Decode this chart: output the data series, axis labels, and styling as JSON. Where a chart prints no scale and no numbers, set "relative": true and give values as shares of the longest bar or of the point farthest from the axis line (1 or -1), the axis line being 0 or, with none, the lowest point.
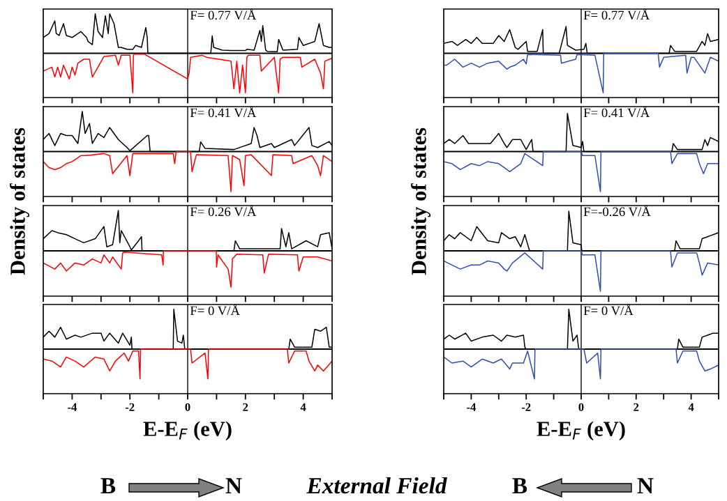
{
  "chart_data": [
    {
      "type": "line",
      "relative": true,
      "ylabel": "Density of states",
      "xlim": [
        -5,
        5
      ],
      "xticks": [
        {
          "value": -5,
          "label": null
        },
        -4,
        {
          "value": -3,
          "label": null
        },
        -2,
        {
          "value": -1,
          "label": null
        },
        0,
        {
          "value": 1,
          "label": null
        },
        2,
        {
          "value": 3,
          "label": null
        },
        4,
        {
          "value": 5,
          "label": null
        }
      ],
      "tick_labels": false,
      "annotations": [
        "F= 0.77 V/Å"
      ],
      "ref_lines": [
        {
          "axis": "x",
          "value": 0
        }
      ],
      "series": [
        {
          "color": "#000000",
          "x": [
            -5,
            -4.8,
            -4.6,
            -4.55,
            -4.45,
            -4.3,
            -4.2,
            -4.0,
            -3.7,
            -3.5,
            -3.45,
            -3.3,
            -3.2,
            -3.1,
            -2.95,
            -2.85,
            -2.75,
            -2.7,
            -2.55,
            -2.4,
            -2.3,
            -2.1,
            -1.9,
            -1.8,
            -1.6,
            -1.45,
            -1.4,
            -1.38,
            0.8,
            0.85,
            0.9,
            1.2,
            1.5,
            2.0,
            2.05,
            2.3,
            2.5,
            2.55,
            2.6,
            2.7,
            2.75,
            3.1,
            3.15,
            3.3,
            3.8,
            3.85,
            4.0,
            4.4,
            4.55,
            4.7,
            4.9,
            5.0
          ],
          "values": [
            0.4,
            0.5,
            0.82,
            0.5,
            0.45,
            0.75,
            0.45,
            0.4,
            0.55,
            0.4,
            0.3,
            0.22,
            1,
            0.55,
            0.4,
            0.95,
            0.5,
            1,
            0.75,
            0.15,
            0.15,
            0.1,
            0.1,
            0.2,
            0.15,
            0.65,
            0.4,
            0,
            0,
            0.44,
            0.15,
            0.08,
            0.07,
            0.07,
            0.1,
            0.08,
            0.58,
            0.3,
            0.7,
            0.08,
            0.05,
            0.04,
            0.35,
            0.08,
            0.1,
            0.4,
            0.2,
            0.3,
            0.75,
            0.2,
            0.15,
            0.15
          ]
        },
        {
          "color": "#ff0000",
          "x": [
            -5,
            -4.7,
            -4.6,
            -4.5,
            -4.4,
            -4.3,
            -4.1,
            -4.0,
            -3.9,
            -3.8,
            -3.6,
            -3.4,
            -3.3,
            -2.9,
            -2.5,
            -2.4,
            -2.3,
            -2.0,
            -1.9,
            -1.88,
            -1.85,
            -1.5,
            0,
            0.05,
            0.1,
            0.5,
            0.65,
            1.5,
            1.6,
            1.7,
            1.8,
            1.9,
            2.0,
            2.05,
            2.1,
            2.5,
            2.55,
            3.0,
            3.15,
            3.2,
            3.3,
            3.9,
            3.95,
            4.4,
            4.6,
            4.7,
            4.75,
            5.0
          ],
          "values": [
            -0.45,
            -0.35,
            -0.6,
            -0.35,
            -0.6,
            -0.3,
            -0.65,
            -0.35,
            -0.55,
            -0.25,
            -0.15,
            -0.15,
            -0.6,
            -0.08,
            -0.05,
            -0.3,
            -0.05,
            -0.05,
            -1,
            -0.05,
            -0.02,
            -0.02,
            -0.65,
            -0.5,
            -0.1,
            -0.05,
            -0.1,
            -0.2,
            -0.9,
            -0.2,
            -1,
            -0.3,
            -1,
            -0.1,
            -0.05,
            -0.05,
            -0.45,
            -0.1,
            -1,
            -0.15,
            -0.1,
            -0.1,
            -0.35,
            -0.15,
            -0.5,
            -0.9,
            -0.2,
            -0.12
          ]
        }
      ]
    },
    {
      "type": "line",
      "relative": true,
      "xlim": [
        -5,
        5
      ],
      "xticks": [
        {
          "value": -5,
          "label": null
        },
        -4,
        {
          "value": -3,
          "label": null
        },
        -2,
        {
          "value": -1,
          "label": null
        },
        0,
        {
          "value": 1,
          "label": null
        },
        2,
        {
          "value": 3,
          "label": null
        },
        4,
        {
          "value": 5,
          "label": null
        }
      ],
      "tick_labels": false,
      "annotations": [
        "F= 0.41 V/Å"
      ],
      "ref_lines": [
        {
          "axis": "x",
          "value": 0
        }
      ],
      "series": [
        {
          "color": "#000000",
          "x": [
            -5,
            -4.8,
            -4.6,
            -4.4,
            -4.2,
            -4.0,
            -3.8,
            -3.65,
            -3.55,
            -3.4,
            -3.3,
            -3.1,
            -2.9,
            -2.7,
            -2.4,
            -2.1,
            -2.0,
            -1.4,
            -1.35,
            -1.3,
            0.4,
            0.45,
            0.6,
            1.6,
            2.2,
            2.3,
            2.4,
            2.5,
            2.9,
            3.0,
            3.6,
            3.7,
            4.2,
            4.3,
            4.5,
            4.9,
            5.0
          ],
          "values": [
            0.3,
            0.45,
            0.15,
            0.45,
            0.4,
            0.4,
            0.2,
            1,
            0.45,
            0.7,
            0.2,
            0.45,
            0.35,
            0.6,
            0.3,
            0.1,
            0.02,
            0.4,
            0.4,
            0,
            0,
            0.24,
            0.08,
            0.05,
            0.2,
            0.6,
            0.4,
            0.1,
            0.2,
            0.1,
            0.3,
            0.15,
            0.6,
            0.15,
            0.1,
            0.25,
            0.15
          ]
        },
        {
          "color": "#ff0000",
          "x": [
            -5,
            -4.8,
            -4.6,
            -4.4,
            -4.2,
            -4.0,
            -3.7,
            -3.5,
            -2.9,
            -2.7,
            -2.6,
            -2.1,
            -2.0,
            -1.9,
            -0.5,
            -0.45,
            -0.4,
            0.1,
            0.15,
            0.3,
            1.4,
            1.5,
            1.55,
            1.8,
            1.95,
            2.0,
            2.2,
            2.9,
            2.95,
            3.6,
            3.65,
            4.3,
            4.5,
            4.6,
            4.7,
            5.0
          ],
          "values": [
            -0.25,
            -0.4,
            -0.45,
            -0.4,
            -0.3,
            -0.25,
            -0.1,
            -0.1,
            -0.05,
            -0.1,
            -0.55,
            -0.1,
            -0.6,
            -0.05,
            -0.05,
            -0.3,
            0,
            0,
            -0.5,
            -0.08,
            -0.1,
            -1,
            -0.1,
            -0.2,
            -0.85,
            -0.1,
            -0.08,
            -0.6,
            -0.08,
            -0.1,
            -0.3,
            -0.1,
            -0.35,
            -0.6,
            -0.1,
            -0.25
          ]
        }
      ]
    },
    {
      "type": "line",
      "relative": true,
      "xlim": [
        -5,
        5
      ],
      "xticks": [
        {
          "value": -5,
          "label": null
        },
        -4,
        {
          "value": -3,
          "label": null
        },
        -2,
        {
          "value": -1,
          "label": null
        },
        0,
        {
          "value": 1,
          "label": null
        },
        2,
        {
          "value": 3,
          "label": null
        },
        4,
        {
          "value": 5,
          "label": null
        }
      ],
      "tick_labels": false,
      "annotations": [
        "F= 0.26 V/Å"
      ],
      "ref_lines": [
        {
          "axis": "x",
          "value": 0
        }
      ],
      "series": [
        {
          "color": "#000000",
          "x": [
            -5,
            -4.7,
            -4.5,
            -4.2,
            -3.9,
            -3.6,
            -3.2,
            -2.9,
            -2.8,
            -2.6,
            -2.4,
            -2.35,
            -2.3,
            -2.0,
            -1.95,
            -1.7,
            -1.6,
            -1.58,
            1.6,
            1.65,
            1.8,
            3.2,
            3.25,
            3.4,
            3.5,
            3.6,
            4.1,
            4.5,
            4.6,
            4.9,
            5.0
          ],
          "values": [
            0.3,
            0.5,
            0.45,
            0.4,
            0.3,
            0.2,
            0.3,
            0.6,
            0.1,
            0.15,
            1,
            0.2,
            0.5,
            0.1,
            0.02,
            0.25,
            0.35,
            0,
            0,
            0.25,
            0.05,
            0.05,
            0.55,
            0.1,
            0.45,
            0.05,
            0.25,
            0.1,
            0.4,
            0.45,
            0.05
          ]
        },
        {
          "color": "#ff0000",
          "x": [
            -5,
            -4.6,
            -4.4,
            -4.2,
            -3.9,
            -3.6,
            -3.3,
            -3.0,
            -2.9,
            -2.7,
            -2.6,
            -2.3,
            -2.25,
            -2.2,
            -0.9,
            -0.85,
            -0.84,
            0.99,
            1.0,
            1.05,
            1.4,
            1.5,
            1.55,
            1.7,
            2.6,
            2.65,
            2.8,
            3.8,
            3.85,
            4.0,
            4.5,
            5.0
          ],
          "values": [
            -0.3,
            -0.45,
            -0.3,
            -0.5,
            -0.3,
            -0.35,
            -0.2,
            -0.3,
            -0.1,
            -0.3,
            -0.15,
            -0.45,
            -0.05,
            -0.03,
            -0.1,
            -0.35,
            0,
            0,
            -0.4,
            -0.1,
            -0.45,
            -0.9,
            -0.2,
            -0.08,
            -0.1,
            -0.55,
            -0.08,
            -0.1,
            -0.5,
            -0.15,
            -0.15,
            -0.25
          ]
        }
      ]
    },
    {
      "type": "line",
      "relative": true,
      "xlabel": "E-E$_{F}$ (eV)",
      "xlim": [
        -5,
        5
      ],
      "xticks": [
        {
          "value": -5,
          "label": null
        },
        -4,
        {
          "value": -3,
          "label": null
        },
        -2,
        {
          "value": -1,
          "label": null
        },
        0,
        {
          "value": 1,
          "label": null
        },
        2,
        {
          "value": 3,
          "label": null
        },
        4,
        {
          "value": 5,
          "label": null
        }
      ],
      "tick_labels": "x",
      "annotations": [
        "F= 0 V/Å"
      ],
      "ref_lines": [
        {
          "axis": "x",
          "value": 0
        }
      ],
      "series": [
        {
          "color": "#000000",
          "x": [
            -5,
            -4.8,
            -4.6,
            -4.4,
            -4.2,
            -3.9,
            -3.7,
            -3.3,
            -3.0,
            -2.9,
            -2.7,
            -2.4,
            -2.25,
            -2.0,
            -1.95,
            -1.93,
            -0.5,
            -0.48,
            -0.35,
            -0.2,
            -0.15,
            -0.1,
            3.5,
            3.55,
            3.7,
            4.3,
            4.4,
            4.6,
            4.8,
            4.9,
            5.0
          ],
          "values": [
            0.3,
            0.45,
            0.3,
            0.55,
            0.25,
            0.35,
            0.3,
            0.4,
            0.4,
            0.2,
            0.4,
            0.15,
            0.4,
            0.1,
            0.3,
            0,
            0,
            1,
            0.2,
            0.15,
            0.35,
            0,
            0,
            0.25,
            0.05,
            0.05,
            0.5,
            0.45,
            0.55,
            0.05,
            0.05
          ]
        },
        {
          "color": "#ff0000",
          "x": [
            -5,
            -4.7,
            -4.4,
            -4.2,
            -3.9,
            -3.6,
            -3.2,
            -2.9,
            -2.7,
            -2.5,
            -2.2,
            -2.05,
            -1.9,
            -1.7,
            -1.65,
            -1.63,
            0.1,
            0.15,
            0.6,
            0.7,
            0.72,
            3.45,
            3.5,
            3.7,
            4.1,
            4.2,
            4.4,
            4.5,
            4.7,
            5.0
          ],
          "values": [
            -0.25,
            -0.3,
            -0.45,
            -0.2,
            -0.3,
            -0.45,
            -0.2,
            -0.25,
            -0.55,
            -0.3,
            -0.1,
            -0.3,
            -0.05,
            -0.05,
            -0.75,
            0,
            0,
            -0.35,
            -0.1,
            -0.75,
            0,
            0,
            -0.35,
            -0.05,
            -0.05,
            -0.3,
            -0.55,
            -0.4,
            -0.55,
            -0.3
          ]
        }
      ]
    },
    {
      "type": "line",
      "relative": true,
      "ylabel": "Density of states",
      "xlim": [
        -5,
        5
      ],
      "xticks": [
        {
          "value": -5,
          "label": null
        },
        -4,
        {
          "value": -3,
          "label": null
        },
        -2,
        {
          "value": -1,
          "label": null
        },
        0,
        {
          "value": 1,
          "label": null
        },
        2,
        {
          "value": 3,
          "label": null
        },
        4,
        {
          "value": 5,
          "label": null
        }
      ],
      "tick_labels": false,
      "annotations": [
        "F= 0.77 V/Å"
      ],
      "ref_lines": [
        {
          "axis": "x",
          "value": 0
        }
      ],
      "series": [
        {
          "color": "#000000",
          "x": [
            -5,
            -4.7,
            -4.5,
            -4.2,
            -4.0,
            -3.8,
            -3.6,
            -3.2,
            -3.0,
            -2.8,
            -2.6,
            -2.4,
            -2.3,
            -2.0,
            -1.95,
            -1.6,
            -1.4,
            -1.38,
            -0.8,
            -0.55,
            -0.5,
            -0.2,
            0.1,
            0.17,
            0.22,
            3.2,
            3.25,
            3.4,
            4.2,
            4.4,
            4.5,
            4.6,
            4.7,
            5.0
          ],
          "values": [
            0.25,
            0.3,
            0.2,
            0.35,
            0.25,
            0.4,
            0.25,
            0.25,
            0.45,
            0.3,
            0.6,
            0.15,
            0.1,
            0.3,
            0.05,
            0.05,
            0.6,
            0,
            0,
            0.68,
            0.2,
            0.08,
            0.1,
            0.25,
            0,
            0,
            0.2,
            0.05,
            0.05,
            0.3,
            0.2,
            0.5,
            0.3,
            0.35
          ]
        },
        {
          "color": "#3050b0",
          "x": [
            -5,
            -4.9,
            -4.6,
            -4.3,
            -4.0,
            -3.7,
            -3.4,
            -3.0,
            -2.7,
            -2.6,
            -2.4,
            -2.1,
            -2.0,
            -1.95,
            -0.75,
            -0.72,
            -0.2,
            -0.15,
            0.5,
            0.8,
            0.82,
            2.8,
            2.85,
            3.0,
            3.8,
            3.85,
            4.0,
            4.1,
            4.5,
            4.7,
            5.0
          ],
          "values": [
            -0.3,
            -0.3,
            -0.15,
            -0.35,
            -0.25,
            -0.35,
            -0.25,
            -0.2,
            -0.4,
            -0.35,
            -0.3,
            -0.15,
            -0.27,
            -0.03,
            -0.05,
            -0.25,
            -0.15,
            -0.03,
            -0.05,
            -1,
            0,
            0,
            -0.35,
            -0.1,
            -0.05,
            -0.5,
            -0.1,
            -0.1,
            -0.5,
            -0.1,
            -0.2
          ]
        }
      ]
    },
    {
      "type": "line",
      "relative": true,
      "xlim": [
        -5,
        5
      ],
      "xticks": [
        {
          "value": -5,
          "label": null
        },
        -4,
        {
          "value": -3,
          "label": null
        },
        -2,
        {
          "value": -1,
          "label": null
        },
        0,
        {
          "value": 1,
          "label": null
        },
        2,
        {
          "value": 3,
          "label": null
        },
        4,
        {
          "value": 5,
          "label": null
        }
      ],
      "tick_labels": false,
      "annotations": [
        "F= 0.41 V/Å"
      ],
      "ref_lines": [
        {
          "axis": "x",
          "value": 0
        }
      ],
      "series": [
        {
          "color": "#000000",
          "x": [
            -5,
            -4.8,
            -4.6,
            -4.3,
            -4.1,
            -3.8,
            -3.6,
            -3.3,
            -3.0,
            -2.8,
            -2.7,
            -2.5,
            -2.2,
            -2.0,
            -1.8,
            -1.75,
            -0.55,
            -0.5,
            -0.3,
            0,
            0.05,
            0.1,
            3.3,
            3.35,
            3.5,
            4.4,
            4.5,
            4.6,
            4.7,
            5.0
          ],
          "values": [
            0.2,
            0.3,
            0.2,
            0.4,
            0.2,
            0.2,
            0.2,
            0.2,
            0.45,
            0.2,
            0.1,
            0.3,
            0.3,
            0.05,
            0.3,
            0,
            0,
            0.95,
            0.15,
            0.1,
            0.25,
            0,
            0,
            0.2,
            0.05,
            0.05,
            0.3,
            0.15,
            0.35,
            0.25
          ]
        },
        {
          "color": "#3050b0",
          "x": [
            -5,
            -4.7,
            -4.4,
            -4.0,
            -3.7,
            -3.4,
            -3.0,
            -2.7,
            -2.6,
            -2.2,
            -2.05,
            -1.4,
            -1.38,
            0,
            0.05,
            0.5,
            0.7,
            0.72,
            3.25,
            3.3,
            3.5,
            4.2,
            4.3,
            4.45,
            4.6,
            5.0
          ],
          "values": [
            -0.25,
            -0.3,
            -0.45,
            -0.3,
            -0.35,
            -0.25,
            -0.3,
            -0.45,
            -0.5,
            -0.3,
            -0.05,
            -0.35,
            0,
            0,
            -0.1,
            -0.1,
            -1,
            0,
            0,
            -0.3,
            -0.05,
            -0.05,
            -0.3,
            -0.55,
            -0.3,
            -0.3
          ]
        }
      ]
    },
    {
      "type": "line",
      "relative": true,
      "xlim": [
        -5,
        5
      ],
      "xticks": [
        {
          "value": -5,
          "label": null
        },
        -4,
        {
          "value": -3,
          "label": null
        },
        -2,
        {
          "value": -1,
          "label": null
        },
        0,
        {
          "value": 1,
          "label": null
        },
        2,
        {
          "value": 3,
          "label": null
        },
        4,
        {
          "value": 5,
          "label": null
        }
      ],
      "tick_labels": false,
      "annotations": [
        "F=-0.26 V/Å"
      ],
      "ref_lines": [
        {
          "axis": "x",
          "value": 0
        }
      ],
      "series": [
        {
          "color": "#000000",
          "x": [
            -5,
            -4.8,
            -4.6,
            -4.4,
            -4.0,
            -3.8,
            -3.4,
            -3.0,
            -2.9,
            -2.6,
            -2.4,
            -2.2,
            -2.05,
            -1.9,
            -1.87,
            -0.5,
            -0.45,
            -0.3,
            0,
            0.02,
            3.4,
            3.45,
            3.6,
            4.3,
            4.4,
            4.6,
            5.0
          ],
          "values": [
            0.25,
            0.4,
            0.3,
            0.45,
            0.25,
            0.6,
            0.25,
            0.2,
            0.45,
            0.3,
            0.35,
            0.1,
            0.4,
            0.05,
            0,
            0,
            0.98,
            0.2,
            0.15,
            0,
            0,
            0.25,
            0.05,
            0.05,
            0.3,
            0.35,
            0.45
          ]
        },
        {
          "color": "#3050b0",
          "x": [
            -5,
            -4.7,
            -4.4,
            -4.0,
            -3.7,
            -3.4,
            -3.0,
            -2.8,
            -2.7,
            -2.5,
            -2.05,
            -1.4,
            -1.38,
            0,
            0.05,
            0.5,
            0.7,
            0.72,
            3.25,
            3.3,
            3.5,
            4.2,
            4.3,
            4.4,
            4.6,
            5.0
          ],
          "values": [
            -0.25,
            -0.35,
            -0.45,
            -0.35,
            -0.35,
            -0.25,
            -0.3,
            -0.45,
            -0.5,
            -0.3,
            -0.05,
            -0.45,
            0,
            0,
            -0.1,
            -0.1,
            -1,
            0,
            0,
            -0.4,
            -0.05,
            -0.05,
            -0.3,
            -0.6,
            -0.3,
            -0.35
          ]
        }
      ]
    },
    {
      "type": "line",
      "relative": true,
      "xlabel": "E-E$_{F}$ (eV)",
      "xlim": [
        -5,
        5
      ],
      "xticks": [
        {
          "value": -5,
          "label": null
        },
        -4,
        {
          "value": -3,
          "label": null
        },
        -2,
        {
          "value": -1,
          "label": null
        },
        0,
        {
          "value": 1,
          "label": null
        },
        2,
        {
          "value": 3,
          "label": null
        },
        4,
        {
          "value": 5,
          "label": null
        }
      ],
      "tick_labels": "x",
      "annotations": [
        "F= 0 V/Å"
      ],
      "ref_lines": [
        {
          "axis": "x",
          "value": 0
        }
      ],
      "series": [
        {
          "color": "#000000",
          "x": [
            -5,
            -4.8,
            -4.6,
            -4.2,
            -4.0,
            -3.6,
            -3.2,
            -2.9,
            -2.7,
            -2.4,
            -2.1,
            -2.05,
            -2.0,
            -0.5,
            -0.45,
            -0.3,
            -0.15,
            -0.1,
            -0.08,
            3.5,
            3.55,
            3.7,
            4.3,
            4.4,
            4.6,
            4.8,
            5.0
          ],
          "values": [
            0.25,
            0.35,
            0.25,
            0.4,
            0.2,
            0.3,
            0.35,
            0.2,
            0.35,
            0.3,
            0.35,
            0.05,
            0,
            0,
            1,
            0.2,
            0.35,
            0.05,
            0,
            0,
            0.25,
            0.05,
            0.05,
            0.3,
            0.35,
            0.4,
            0.4
          ]
        },
        {
          "color": "#3050b0",
          "x": [
            -5,
            -4.7,
            -4.3,
            -4.0,
            -3.6,
            -3.2,
            -2.9,
            -2.6,
            -2.5,
            -2.1,
            -1.95,
            -1.7,
            -1.68,
            0.1,
            0.2,
            0.6,
            0.7,
            0.72,
            3.45,
            3.5,
            3.7,
            4.2,
            4.3,
            4.5,
            4.7,
            5.0
          ],
          "values": [
            -0.2,
            -0.35,
            -0.3,
            -0.45,
            -0.25,
            -0.35,
            -0.25,
            -0.5,
            -0.35,
            -0.35,
            -0.05,
            -0.75,
            0,
            0,
            -0.35,
            -0.1,
            -0.75,
            0,
            0,
            -0.35,
            -0.05,
            -0.05,
            -0.3,
            -0.55,
            -0.5,
            -0.4
          ]
        }
      ]
    },
    {
      "type": "other",
      "annotations": [
        "B",
        "N",
        "External Field",
        "B",
        "N"
      ]
    }
  ]
}
